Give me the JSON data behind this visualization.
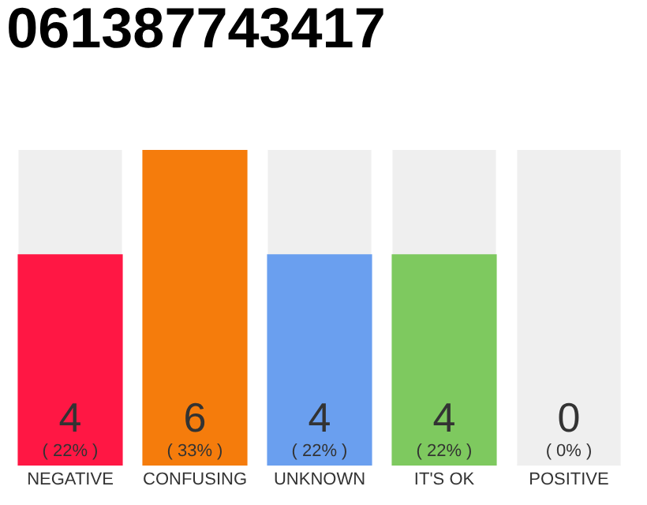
{
  "chart_data": {
    "type": "bar",
    "title": "061387743417",
    "categories": [
      "NEGATIVE",
      "CONFUSING",
      "UNKNOWN",
      "IT'S OK",
      "POSITIVE"
    ],
    "series": [
      {
        "colors": [
          "#ff1744",
          "#f57c0c",
          "#6a9fef",
          "#7ec95f",
          "#efefef"
        ],
        "values": [
          4,
          6,
          4,
          4,
          0
        ],
        "value_labels": [
          "4\n( 22% )",
          "6\n( 33% )",
          "4\n( 22% )",
          "4\n( 22% )",
          "0\n( 0% )"
        ]
      }
    ],
    "grid": false
  }
}
